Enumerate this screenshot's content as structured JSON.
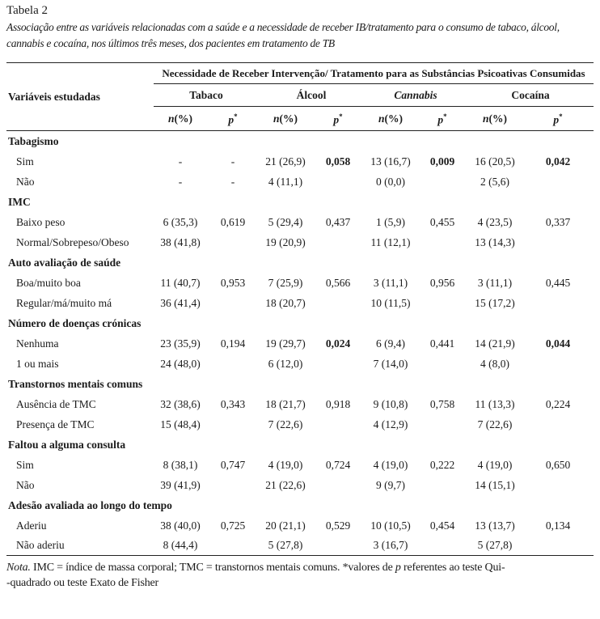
{
  "page": {
    "label": "Tabela 2",
    "caption": "Associação entre as variáveis relacionadas com a saúde e a necessidade de receber IB/tratamento para o consumo de tabaco, álcool, cannabis e cocaína, nos últimos três meses, dos pacientes em tratamento de TB"
  },
  "table": {
    "spanning_header": "Necessidade de Receber Intervenção/ Tratamento para as Substâncias Psicoativas Consumidas",
    "variables_header": "Variáveis estudadas",
    "substances": [
      {
        "label": "Tabaco",
        "italic": false
      },
      {
        "label": "Álcool",
        "italic": false
      },
      {
        "label": "Cannabis",
        "italic": true
      },
      {
        "label": "Cocaína",
        "italic": false
      }
    ],
    "measure_headers": {
      "n_italic": "n",
      "n_rest": "(%)",
      "p_italic": "p",
      "p_sup": "*"
    },
    "rows": [
      {
        "type": "group",
        "label": "Tabagismo"
      },
      {
        "type": "data",
        "label": "Sim",
        "cells": [
          {
            "v": "-"
          },
          {
            "v": "-"
          },
          {
            "v": "21 (26,9)"
          },
          {
            "v": "0,058",
            "bold": true
          },
          {
            "v": "13 (16,7)"
          },
          {
            "v": "0,009",
            "bold": true
          },
          {
            "v": "16 (20,5)"
          },
          {
            "v": "0,042",
            "bold": true
          }
        ]
      },
      {
        "type": "data",
        "label": "Não",
        "cells": [
          {
            "v": "-"
          },
          {
            "v": "-"
          },
          {
            "v": "4 (11,1)"
          },
          {
            "v": ""
          },
          {
            "v": "0 (0,0)"
          },
          {
            "v": ""
          },
          {
            "v": "2 (5,6)"
          },
          {
            "v": ""
          }
        ]
      },
      {
        "type": "group",
        "label": "IMC"
      },
      {
        "type": "data",
        "label": "Baixo peso",
        "cells": [
          {
            "v": "6 (35,3)"
          },
          {
            "v": "0,619"
          },
          {
            "v": "5 (29,4)"
          },
          {
            "v": "0,437"
          },
          {
            "v": "1 (5,9)"
          },
          {
            "v": "0,455"
          },
          {
            "v": "4 (23,5)"
          },
          {
            "v": "0,337"
          }
        ]
      },
      {
        "type": "data",
        "label": "Normal/Sobrepeso/Obeso",
        "cells": [
          {
            "v": "38 (41,8)"
          },
          {
            "v": ""
          },
          {
            "v": "19 (20,9)"
          },
          {
            "v": ""
          },
          {
            "v": "11 (12,1)"
          },
          {
            "v": ""
          },
          {
            "v": "13 (14,3)"
          },
          {
            "v": ""
          }
        ]
      },
      {
        "type": "group",
        "label": "Auto avaliação de saúde"
      },
      {
        "type": "data",
        "label": "Boa/muito boa",
        "cells": [
          {
            "v": "11 (40,7)"
          },
          {
            "v": "0,953"
          },
          {
            "v": "7 (25,9)"
          },
          {
            "v": "0,566"
          },
          {
            "v": "3 (11,1)"
          },
          {
            "v": "0,956"
          },
          {
            "v": "3 (11,1)"
          },
          {
            "v": "0,445"
          }
        ]
      },
      {
        "type": "data",
        "label": "Regular/má/muito má",
        "cells": [
          {
            "v": "36 (41,4)"
          },
          {
            "v": ""
          },
          {
            "v": "18 (20,7)"
          },
          {
            "v": ""
          },
          {
            "v": "10 (11,5)"
          },
          {
            "v": ""
          },
          {
            "v": "15 (17,2)"
          },
          {
            "v": ""
          }
        ]
      },
      {
        "type": "group",
        "label": "Número de doenças crónicas"
      },
      {
        "type": "data",
        "label": "Nenhuma",
        "cells": [
          {
            "v": "23 (35,9)"
          },
          {
            "v": "0,194"
          },
          {
            "v": "19 (29,7)"
          },
          {
            "v": "0,024",
            "bold": true
          },
          {
            "v": "6 (9,4)"
          },
          {
            "v": "0,441"
          },
          {
            "v": "14 (21,9)"
          },
          {
            "v": "0,044",
            "bold": true
          }
        ]
      },
      {
        "type": "data",
        "label": "1 ou mais",
        "cells": [
          {
            "v": "24 (48,0)"
          },
          {
            "v": ""
          },
          {
            "v": "6 (12,0)"
          },
          {
            "v": ""
          },
          {
            "v": "7 (14,0)"
          },
          {
            "v": ""
          },
          {
            "v": "4 (8,0)"
          },
          {
            "v": ""
          }
        ]
      },
      {
        "type": "group",
        "label": "Transtornos mentais comuns"
      },
      {
        "type": "data",
        "label": "Ausência de TMC",
        "cells": [
          {
            "v": "32 (38,6)"
          },
          {
            "v": "0,343"
          },
          {
            "v": "18 (21,7)"
          },
          {
            "v": "0,918"
          },
          {
            "v": "9 (10,8)"
          },
          {
            "v": "0,758"
          },
          {
            "v": "11 (13,3)"
          },
          {
            "v": "0,224"
          }
        ]
      },
      {
        "type": "data",
        "label": "Presença de TMC",
        "cells": [
          {
            "v": "15 (48,4)"
          },
          {
            "v": ""
          },
          {
            "v": "7 (22,6)"
          },
          {
            "v": ""
          },
          {
            "v": "4 (12,9)"
          },
          {
            "v": ""
          },
          {
            "v": "7 (22,6)"
          },
          {
            "v": ""
          }
        ]
      },
      {
        "type": "group",
        "label": "Faltou a alguma consulta"
      },
      {
        "type": "data",
        "label": "Sim",
        "cells": [
          {
            "v": "8 (38,1)"
          },
          {
            "v": "0,747"
          },
          {
            "v": "4 (19,0)"
          },
          {
            "v": "0,724"
          },
          {
            "v": "4 (19,0)"
          },
          {
            "v": "0,222"
          },
          {
            "v": "4 (19,0)"
          },
          {
            "v": "0,650"
          }
        ]
      },
      {
        "type": "data",
        "label": "Não",
        "cells": [
          {
            "v": "39 (41,9)"
          },
          {
            "v": ""
          },
          {
            "v": "21 (22,6)"
          },
          {
            "v": ""
          },
          {
            "v": "9 (9,7)"
          },
          {
            "v": ""
          },
          {
            "v": "14 (15,1)"
          },
          {
            "v": ""
          }
        ]
      },
      {
        "type": "group",
        "label": "Adesão avaliada ao longo do tempo"
      },
      {
        "type": "data",
        "label": "Aderiu",
        "cells": [
          {
            "v": "38 (40,0)"
          },
          {
            "v": "0,725"
          },
          {
            "v": "20 (21,1)"
          },
          {
            "v": "0,529"
          },
          {
            "v": "10 (10,5)"
          },
          {
            "v": "0,454"
          },
          {
            "v": "13 (13,7)"
          },
          {
            "v": "0,134"
          }
        ]
      },
      {
        "type": "data",
        "label": "Não aderiu",
        "cells": [
          {
            "v": "8 (44,4)"
          },
          {
            "v": ""
          },
          {
            "v": "5 (27,8)"
          },
          {
            "v": ""
          },
          {
            "v": "3 (16,7)"
          },
          {
            "v": ""
          },
          {
            "v": "5 (27,8)"
          },
          {
            "v": ""
          }
        ]
      }
    ]
  },
  "note": {
    "label_italic": "Nota.",
    "before_p": " IMC = índice de massa corporal; TMC = transtornos mentais comuns. *valores de ",
    "p_italic": "p",
    "after_p": " referentes ao teste Qui-",
    "line2": "-quadrado ou teste Exato de Fisher"
  },
  "colors": {
    "text": "#1b1b1b",
    "rule": "#222222",
    "background": "#ffffff"
  }
}
